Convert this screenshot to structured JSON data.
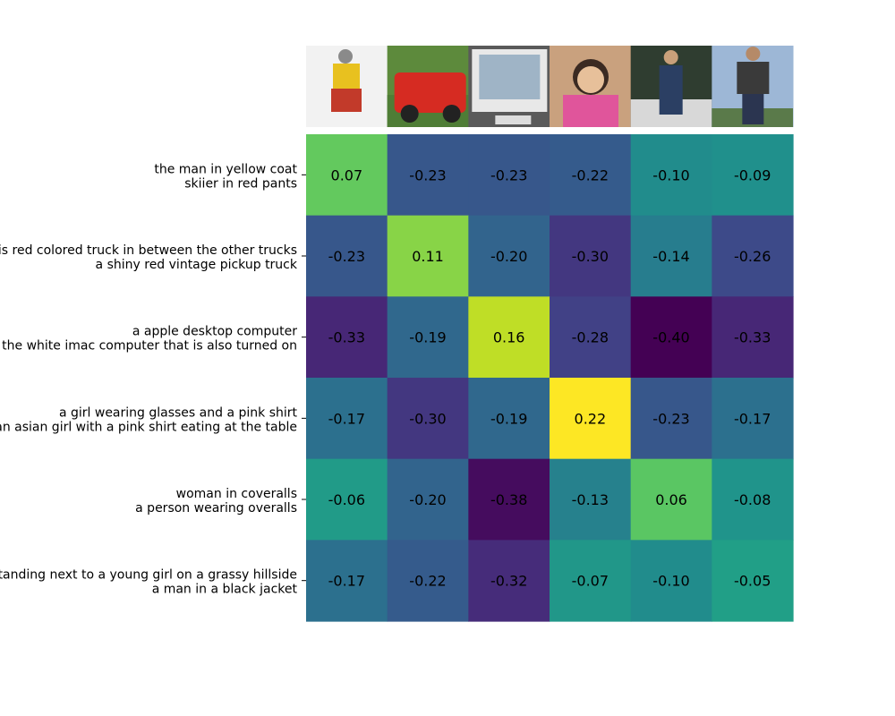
{
  "chart_data": {
    "type": "heatmap",
    "colormap": "viridis",
    "value_range": [
      -0.4,
      0.22
    ],
    "columns": [
      {
        "image": "skier-icon",
        "description": "skier in red pants and yellow coat",
        "colors": [
          "#f2f2f2",
          "#c23a2a",
          "#e8c11f"
        ]
      },
      {
        "image": "truck-icon",
        "description": "red vintage pickup truck on grass",
        "colors": [
          "#5d8a3c",
          "#d62b22",
          "#8a8a8a"
        ]
      },
      {
        "image": "computer-icon",
        "description": "white imac computer",
        "colors": [
          "#5a5a5a",
          "#e8e8e8",
          "#9fb4c6"
        ]
      },
      {
        "image": "girl-icon",
        "description": "girl with glasses in pink shirt",
        "colors": [
          "#c9a17e",
          "#e0559b",
          "#3b2a22"
        ]
      },
      {
        "image": "overalls-icon",
        "description": "person wearing overalls",
        "colors": [
          "#2f3d30",
          "#2b3f63",
          "#d8d8d8"
        ]
      },
      {
        "image": "jacket-icon",
        "description": "man in a black jacket",
        "colors": [
          "#9db7d6",
          "#3a3a3a",
          "#5a7a4a"
        ]
      }
    ],
    "rows": [
      [
        "the man in yellow coat",
        "skiier in red pants"
      ],
      [
        "this is red colored truck in between the other trucks",
        "a shiny red vintage pickup truck"
      ],
      [
        "a apple desktop computer",
        "the white imac computer that is also turned on"
      ],
      [
        "a girl wearing glasses and a pink shirt",
        "an asian girl with a pink shirt eating at the table"
      ],
      [
        "woman in coveralls",
        "a person wearing overalls"
      ],
      [
        "a man standing next to a young girl on a grassy hillside",
        "a man in a black jacket"
      ]
    ],
    "values": [
      [
        0.07,
        -0.23,
        -0.23,
        -0.22,
        -0.1,
        -0.09
      ],
      [
        -0.23,
        0.11,
        -0.2,
        -0.3,
        -0.14,
        -0.26
      ],
      [
        -0.33,
        -0.19,
        0.16,
        -0.28,
        -0.4,
        -0.33
      ],
      [
        -0.17,
        -0.3,
        -0.19,
        0.22,
        -0.23,
        -0.17
      ],
      [
        -0.06,
        -0.2,
        -0.38,
        -0.13,
        0.06,
        -0.08
      ],
      [
        -0.17,
        -0.22,
        -0.32,
        -0.07,
        -0.1,
        -0.05
      ]
    ]
  }
}
